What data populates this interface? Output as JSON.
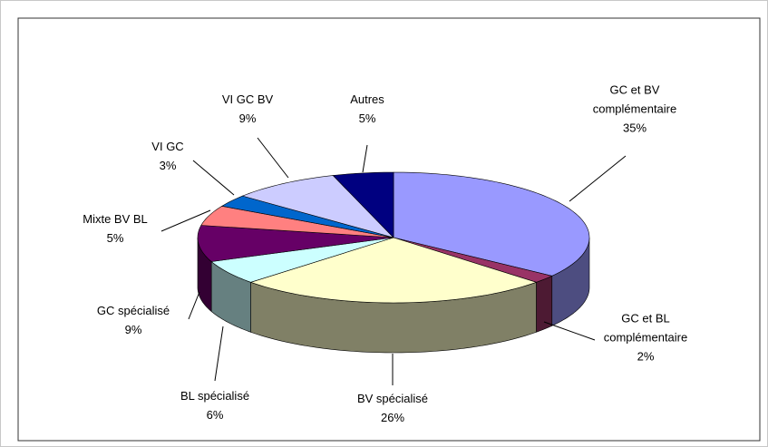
{
  "chart_data": {
    "type": "pie",
    "categories": [
      "GC et BV complémentaire",
      "GC et BL complémentaire",
      "BV spécialisé",
      "BL spécialisé",
      "GC spécialisé",
      "Mixte BV BL",
      "VI GC",
      "VI GC BV",
      "Autres"
    ],
    "values": [
      35,
      2,
      26,
      6,
      9,
      5,
      3,
      9,
      5
    ],
    "value_labels": [
      "35%",
      "2%",
      "26%",
      "6%",
      "9%",
      "5%",
      "3%",
      "9%",
      "5%"
    ],
    "colors": [
      "#9999ff",
      "#993366",
      "#ffffcc",
      "#ccffff",
      "#660066",
      "#ff8080",
      "#0066cc",
      "#ccccff",
      "#000080"
    ],
    "three_d": true
  }
}
